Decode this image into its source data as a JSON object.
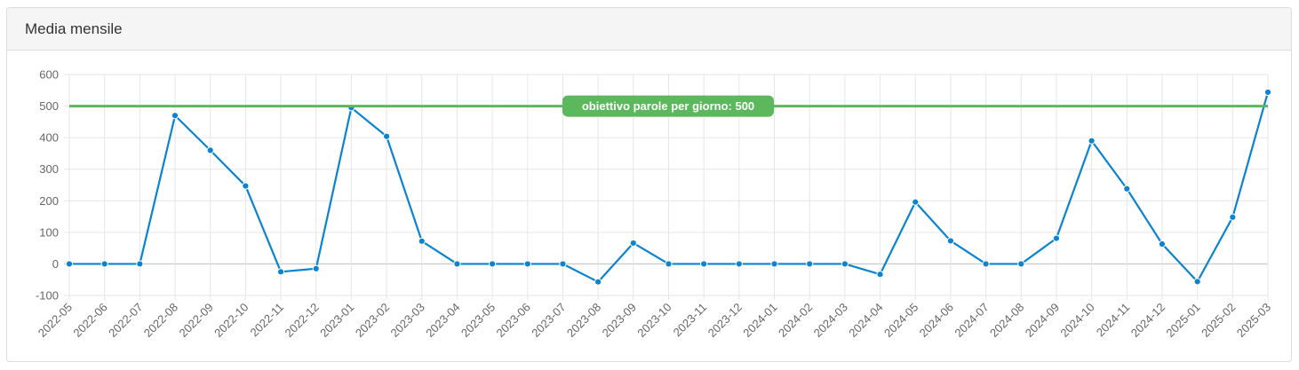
{
  "panel": {
    "title": "Media mensile"
  },
  "colors": {
    "line": "#0a83d0",
    "goal": "#5cb85c",
    "grid": "#e6e6e6",
    "zero": "#bdbdbd",
    "tick_text": "#666666"
  },
  "chart_data": {
    "type": "line",
    "categories": [
      "2022-05",
      "2022-06",
      "2022-07",
      "2022-08",
      "2022-09",
      "2022-10",
      "2022-11",
      "2022-12",
      "2023-01",
      "2023-02",
      "2023-03",
      "2023-04",
      "2023-05",
      "2023-06",
      "2023-07",
      "2023-08",
      "2023-09",
      "2023-10",
      "2023-11",
      "2023-12",
      "2024-01",
      "2024-02",
      "2024-03",
      "2024-04",
      "2024-05",
      "2024-06",
      "2024-07",
      "2024-08",
      "2024-09",
      "2024-10",
      "2024-11",
      "2024-12",
      "2025-01",
      "2025-02",
      "2025-03"
    ],
    "series": [
      {
        "values": [
          0,
          0,
          0,
          470,
          360,
          247,
          -25,
          -15,
          495,
          404,
          72,
          0,
          0,
          0,
          0,
          -57,
          66,
          0,
          0,
          0,
          0,
          0,
          0,
          -33,
          196,
          73,
          0,
          0,
          81,
          390,
          238,
          63,
          -56,
          148,
          544
        ]
      }
    ],
    "ylim": [
      -100,
      600
    ],
    "yticks": [
      -100,
      0,
      100,
      200,
      300,
      400,
      500,
      600
    ],
    "grid": true,
    "legend": "none",
    "goal": {
      "value": 500,
      "label": "obiettivo parole per giorno: 500"
    }
  }
}
